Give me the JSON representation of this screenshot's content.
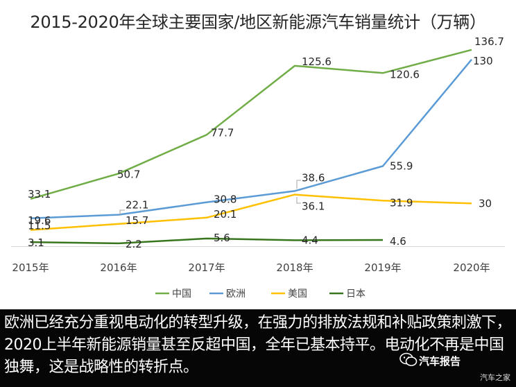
{
  "chart_data": {
    "type": "line",
    "title": "2015-2020年全球主要国家/地区新能源汽车销量统计（万辆）",
    "categories": [
      "2015年",
      "2016年",
      "2017年",
      "2018年",
      "2019年",
      "2020年"
    ],
    "series": [
      {
        "name": "中国",
        "color": "#70ad47",
        "values": [
          33.1,
          50.7,
          77.7,
          125.6,
          120.6,
          136.7
        ],
        "labels": [
          "33.1",
          "50.7",
          "77.7",
          "125.6",
          "120.6",
          "136.7"
        ]
      },
      {
        "name": "欧洲",
        "color": "#5b9bd5",
        "values": [
          19.6,
          22.1,
          30.8,
          38.6,
          55.9,
          130
        ],
        "labels": [
          "19.6",
          "22.1",
          "30.8",
          "38.6",
          "55.9",
          "130"
        ]
      },
      {
        "name": "美国",
        "color": "#ffc000",
        "values": [
          11.5,
          15.7,
          20.1,
          36.1,
          31.9,
          30
        ],
        "labels": [
          "11.5",
          "15.7",
          "20.1",
          "36.1",
          "31.9",
          "30"
        ]
      },
      {
        "name": "日本",
        "color": "#38761d",
        "values": [
          3.1,
          2.2,
          5.6,
          4.4,
          4.6,
          null
        ],
        "labels": [
          "3.1",
          "2.2",
          "5.6",
          "4.4",
          "4.6",
          null
        ]
      }
    ],
    "legend_position": "bottom",
    "grid": false
  },
  "footer": {
    "text": "欧洲已经充分重视电动化的转型升级，在强力的排放法规和补贴政策刺激下，2020上半年新能源销量甚至反超中国，全年已基本持平。电动化不再是中国独舞，这是战略性的转折点。",
    "brand_name": "汽车报告",
    "brand_sub": "汽车之家",
    "brand_icon": "wechat-icon"
  }
}
